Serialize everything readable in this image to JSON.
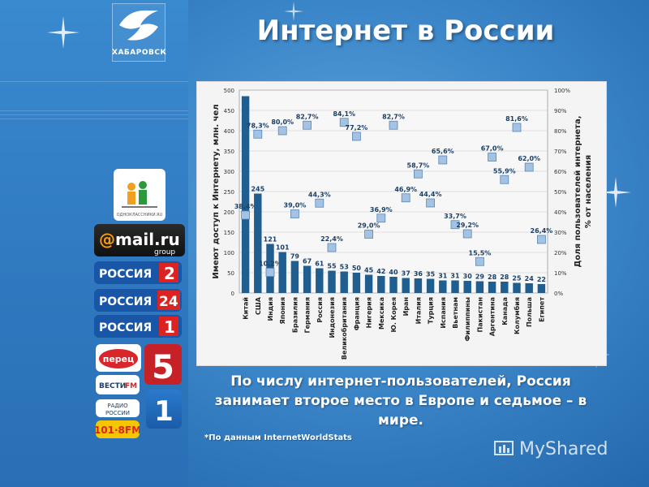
{
  "header": {
    "title": "Интернет в России",
    "emblem_text": "ХАБАРОВСК"
  },
  "caption": "По числу интернет-пользователей, Россия занимает второе место в Европе и седьмое – в мире.",
  "source": "*По данным InternetWorldStats",
  "watermark": "MyShared",
  "logos": [
    "ОДНОКЛАССНИКИ.RU",
    "@mail.ru group",
    "РОССИЯ 2",
    "РОССИЯ 24",
    "РОССИЯ 1",
    "ПЕРЕЦ",
    "5",
    "ВЕСТИ FM",
    "РАДИО РОССИИ",
    "101.8 FM",
    "1"
  ],
  "chart_data": {
    "type": "bar",
    "categories": [
      "Китай",
      "США",
      "Индия",
      "Япония",
      "Бразилия",
      "Германия",
      "Россия",
      "Индонезия",
      "Великобритания",
      "Франция",
      "Нигерия",
      "Мексика",
      "Ю. Корея",
      "Иран",
      "Италия",
      "Турция",
      "Испания",
      "Вьетнам",
      "Филиппины",
      "Пакистан",
      "Аргентина",
      "Канада",
      "Колумбия",
      "Польша",
      "Египет"
    ],
    "series": [
      {
        "type": "bar",
        "axis": "left",
        "values": [
          485,
          245,
          121,
          101,
          79,
          67,
          61,
          55,
          53,
          50,
          45,
          42,
          40,
          37,
          36,
          35,
          31,
          31,
          30,
          29,
          28,
          28,
          25,
          24,
          22
        ],
        "labels": [
          "",
          "245",
          "121",
          "101",
          "79",
          "67",
          "61",
          "55",
          "53",
          "50",
          "45",
          "42",
          "40",
          "37",
          "36",
          "35",
          "31",
          "31",
          "30",
          "29",
          "28",
          "28",
          "25",
          "24",
          "22"
        ]
      },
      {
        "type": "scatter",
        "axis": "right",
        "values": [
          38.4,
          78.3,
          10.2,
          80.0,
          39.0,
          82.7,
          44.3,
          22.4,
          84.1,
          77.2,
          29.0,
          36.9,
          82.7,
          46.9,
          58.7,
          44.4,
          65.6,
          33.7,
          29.2,
          15.5,
          67.0,
          55.9,
          81.6,
          62.0,
          26.4
        ],
        "labels": [
          "38,4%",
          "78,3%",
          "10,2%",
          "80,0%",
          "39,0%",
          "82,7%",
          "44,3%",
          "22,4%",
          "84,1%",
          "77,2%",
          "29,0%",
          "36,9%",
          "82,7%",
          "46,9%",
          "58,7%",
          "44,4%",
          "65,6%",
          "33,7%",
          "29,2%",
          "15,5%",
          "67,0%",
          "55,9%",
          "81,6%",
          "62,0%",
          "26,4%"
        ]
      }
    ],
    "ylabel": "Имеют доступ к Интернету, млн. чел",
    "y2label": "Доля пользователей интернета, % от населения",
    "ylim": [
      0,
      500
    ],
    "y2lim": [
      0,
      100
    ],
    "yticks": [
      "0",
      "50",
      "100",
      "150",
      "200",
      "250",
      "300",
      "350",
      "400",
      "450",
      "500"
    ],
    "y2ticks": [
      "0%",
      "10%",
      "20%",
      "30%",
      "40%",
      "50%",
      "60%",
      "70%",
      "80%",
      "90%",
      "100%"
    ],
    "grid": true,
    "colors": {
      "bar": "#1f5e8e",
      "marker_fill": "#a4c3e4",
      "marker_stroke": "#5b87b5",
      "label": "#1b3f66"
    }
  }
}
